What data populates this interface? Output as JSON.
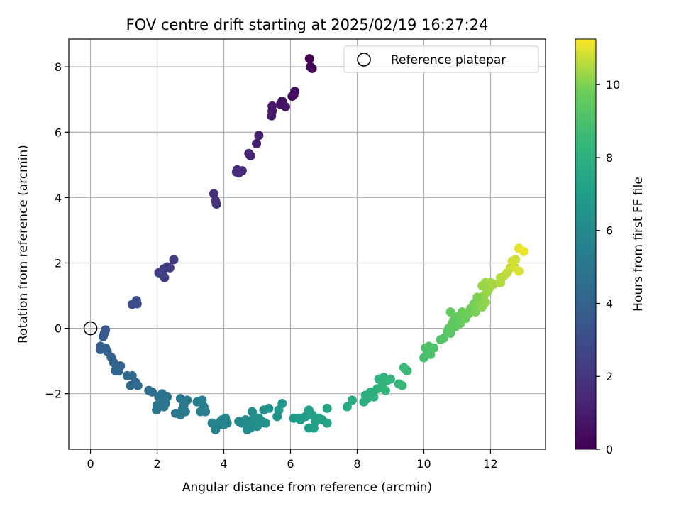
{
  "chart_data": {
    "type": "scatter",
    "title": "FOV centre drift starting at 2025/02/19 16:27:24",
    "xlabel": "Angular distance from reference (arcmin)",
    "ylabel": "Rotation from reference (arcmin)",
    "xlim": [
      -0.65,
      13.65
    ],
    "ylim": [
      -3.7,
      8.85
    ],
    "xticks": [
      0,
      2,
      4,
      6,
      8,
      10,
      12
    ],
    "yticks": [
      -2,
      0,
      2,
      4,
      6,
      8
    ],
    "xtick_labels": [
      "0",
      "2",
      "4",
      "6",
      "8",
      "10",
      "12"
    ],
    "ytick_labels": [
      "−2",
      "0",
      "2",
      "4",
      "6",
      "8"
    ],
    "grid": true,
    "colormap": "viridis",
    "colorbar": {
      "label": "Hours from first FF file",
      "range": [
        0,
        11.25
      ],
      "ticks": [
        0,
        2,
        4,
        6,
        8,
        10
      ],
      "tick_labels": [
        "0",
        "2",
        "4",
        "6",
        "8",
        "10"
      ]
    },
    "legend": {
      "position": "top-right",
      "entries": [
        {
          "label": "Reference platepar",
          "marker": "open-circle",
          "color": "#000000"
        }
      ]
    },
    "reference_point": {
      "x": 0,
      "y": 0
    },
    "points_xyc": [
      [
        6.57,
        8.25,
        0.0
      ],
      [
        6.6,
        8.0,
        0.1
      ],
      [
        6.65,
        7.95,
        0.2
      ],
      [
        6.13,
        7.25,
        0.4
      ],
      [
        6.1,
        7.15,
        0.45
      ],
      [
        6.05,
        7.1,
        0.5
      ],
      [
        5.75,
        6.95,
        0.6
      ],
      [
        5.7,
        6.85,
        0.65
      ],
      [
        5.85,
        6.78,
        0.7
      ],
      [
        5.45,
        6.8,
        0.8
      ],
      [
        5.45,
        6.65,
        0.85
      ],
      [
        5.43,
        6.5,
        0.9
      ],
      [
        5.05,
        5.9,
        1.1
      ],
      [
        4.98,
        5.65,
        1.15
      ],
      [
        4.75,
        5.35,
        1.25
      ],
      [
        4.8,
        5.28,
        1.3
      ],
      [
        4.4,
        4.85,
        1.45
      ],
      [
        4.45,
        4.75,
        1.5
      ],
      [
        4.55,
        4.82,
        1.55
      ],
      [
        4.38,
        4.78,
        1.6
      ],
      [
        3.7,
        4.12,
        1.75
      ],
      [
        3.75,
        3.9,
        1.8
      ],
      [
        3.78,
        3.8,
        1.85
      ],
      [
        2.5,
        2.1,
        2.2
      ],
      [
        2.38,
        1.85,
        2.25
      ],
      [
        2.2,
        1.82,
        2.3
      ],
      [
        2.05,
        1.7,
        2.35
      ],
      [
        2.15,
        1.65,
        2.4
      ],
      [
        2.22,
        1.55,
        2.45
      ],
      [
        2.3,
        1.88,
        2.3
      ],
      [
        1.38,
        0.85,
        2.9
      ],
      [
        1.4,
        0.75,
        2.95
      ],
      [
        1.25,
        0.73,
        3.0
      ],
      [
        0.45,
        -0.05,
        3.5
      ],
      [
        0.42,
        -0.15,
        3.55
      ],
      [
        0.38,
        -0.25,
        3.6
      ],
      [
        0.3,
        -0.55,
        3.7
      ],
      [
        0.3,
        -0.65,
        3.75
      ],
      [
        0.45,
        -0.6,
        3.8
      ],
      [
        0.5,
        -0.7,
        3.85
      ],
      [
        0.62,
        -0.88,
        3.95
      ],
      [
        0.7,
        -1.05,
        4.0
      ],
      [
        0.78,
        -1.2,
        4.05
      ],
      [
        0.85,
        -1.3,
        4.1
      ],
      [
        0.9,
        -1.15,
        4.05
      ],
      [
        0.75,
        -1.3,
        4.1
      ],
      [
        1.1,
        -1.45,
        4.25
      ],
      [
        1.25,
        -1.45,
        4.3
      ],
      [
        1.2,
        -1.75,
        4.35
      ],
      [
        1.35,
        -1.65,
        4.4
      ],
      [
        1.42,
        -1.75,
        4.45
      ],
      [
        1.75,
        -1.9,
        4.6
      ],
      [
        1.85,
        -1.95,
        4.65
      ],
      [
        2.05,
        -2.1,
        4.7
      ],
      [
        2.15,
        -2.0,
        4.75
      ],
      [
        2.22,
        -2.2,
        4.8
      ],
      [
        2.3,
        -2.1,
        4.85
      ],
      [
        2.0,
        -2.35,
        4.85
      ],
      [
        2.1,
        -2.3,
        4.9
      ],
      [
        1.98,
        -2.5,
        4.95
      ],
      [
        2.2,
        -2.4,
        4.9
      ],
      [
        2.25,
        -2.3,
        4.95
      ],
      [
        2.55,
        -2.6,
        5.0
      ],
      [
        2.7,
        -2.65,
        5.05
      ],
      [
        2.75,
        -2.5,
        5.1
      ],
      [
        2.85,
        -2.55,
        5.15
      ],
      [
        2.7,
        -2.15,
        5.1
      ],
      [
        2.9,
        -2.2,
        5.2
      ],
      [
        2.8,
        -2.35,
        5.15
      ],
      [
        3.2,
        -2.25,
        5.3
      ],
      [
        3.35,
        -2.2,
        5.35
      ],
      [
        3.3,
        -2.55,
        5.35
      ],
      [
        3.45,
        -2.55,
        5.4
      ],
      [
        3.4,
        -2.4,
        5.4
      ],
      [
        3.65,
        -2.9,
        5.55
      ],
      [
        3.75,
        -3.1,
        5.6
      ],
      [
        3.85,
        -2.95,
        5.65
      ],
      [
        3.95,
        -2.8,
        5.7
      ],
      [
        4.05,
        -2.75,
        5.75
      ],
      [
        4.1,
        -2.9,
        5.8
      ],
      [
        3.9,
        -2.85,
        5.75
      ],
      [
        4.0,
        -2.95,
        5.8
      ],
      [
        4.45,
        -2.85,
        5.95
      ],
      [
        4.55,
        -2.9,
        6.0
      ],
      [
        4.65,
        -2.8,
        6.05
      ],
      [
        4.7,
        -3.1,
        6.1
      ],
      [
        4.8,
        -3.05,
        6.15
      ],
      [
        4.85,
        -2.9,
        6.2
      ],
      [
        4.95,
        -2.95,
        6.25
      ],
      [
        5.0,
        -3.0,
        6.3
      ],
      [
        4.85,
        -2.55,
        6.2
      ],
      [
        4.9,
        -2.7,
        6.25
      ],
      [
        5.05,
        -2.75,
        6.35
      ],
      [
        5.15,
        -2.85,
        6.4
      ],
      [
        5.2,
        -2.5,
        6.4
      ],
      [
        5.35,
        -2.45,
        6.5
      ],
      [
        5.25,
        -2.9,
        6.45
      ],
      [
        4.75,
        -2.95,
        6.2
      ],
      [
        5.6,
        -2.7,
        6.6
      ],
      [
        5.65,
        -2.5,
        6.65
      ],
      [
        5.75,
        -2.3,
        6.7
      ],
      [
        6.1,
        -2.75,
        6.9
      ],
      [
        6.25,
        -2.75,
        6.95
      ],
      [
        6.3,
        -2.8,
        7.0
      ],
      [
        6.45,
        -2.7,
        7.05
      ],
      [
        6.55,
        -2.5,
        7.1
      ],
      [
        6.55,
        -3.05,
        7.1
      ],
      [
        6.7,
        -3.05,
        7.15
      ],
      [
        6.75,
        -2.85,
        7.2
      ],
      [
        6.85,
        -2.75,
        7.25
      ],
      [
        6.95,
        -2.8,
        7.3
      ],
      [
        7.1,
        -2.45,
        7.35
      ],
      [
        7.1,
        -2.9,
        7.35
      ],
      [
        6.65,
        -2.65,
        7.2
      ],
      [
        7.7,
        -2.4,
        7.65
      ],
      [
        7.85,
        -2.2,
        7.7
      ],
      [
        8.2,
        -2.25,
        7.85
      ],
      [
        8.25,
        -2.05,
        7.9
      ],
      [
        8.3,
        -2.15,
        7.9
      ],
      [
        8.4,
        -1.95,
        7.95
      ],
      [
        8.5,
        -2.1,
        8.0
      ],
      [
        8.6,
        -1.85,
        8.05
      ],
      [
        8.65,
        -1.55,
        8.1
      ],
      [
        8.75,
        -1.65,
        8.15
      ],
      [
        8.8,
        -1.5,
        8.2
      ],
      [
        8.9,
        -1.6,
        8.25
      ],
      [
        8.75,
        -1.8,
        8.2
      ],
      [
        8.85,
        -1.9,
        8.25
      ],
      [
        9.0,
        -1.55,
        8.3
      ],
      [
        9.25,
        -1.7,
        8.45
      ],
      [
        9.35,
        -1.75,
        8.5
      ],
      [
        9.4,
        -1.2,
        8.55
      ],
      [
        9.5,
        -1.3,
        8.6
      ],
      [
        9.45,
        -1.25,
        8.6
      ],
      [
        10.0,
        -0.9,
        8.9
      ],
      [
        10.1,
        -0.75,
        8.95
      ],
      [
        10.05,
        -0.6,
        9.0
      ],
      [
        10.2,
        -0.8,
        9.05
      ],
      [
        10.15,
        -0.55,
        9.05
      ],
      [
        10.3,
        -0.6,
        9.1
      ],
      [
        10.5,
        -0.35,
        9.2
      ],
      [
        10.6,
        -0.3,
        9.25
      ],
      [
        10.7,
        -0.1,
        9.3
      ],
      [
        10.75,
        0.0,
        9.35
      ],
      [
        10.8,
        -0.15,
        9.4
      ],
      [
        10.85,
        0.15,
        9.45
      ],
      [
        10.95,
        0.05,
        9.5
      ],
      [
        10.8,
        0.5,
        9.55
      ],
      [
        11.0,
        0.35,
        9.6
      ],
      [
        11.1,
        0.15,
        9.65
      ],
      [
        11.15,
        0.5,
        9.7
      ],
      [
        11.25,
        0.3,
        9.75
      ],
      [
        11.35,
        0.45,
        9.8
      ],
      [
        11.4,
        0.6,
        9.85
      ],
      [
        11.5,
        0.75,
        9.9
      ],
      [
        11.55,
        0.5,
        9.95
      ],
      [
        11.65,
        0.7,
        10.0
      ],
      [
        11.7,
        0.85,
        10.05
      ],
      [
        11.75,
        0.65,
        10.1
      ],
      [
        11.8,
        1.0,
        10.15
      ],
      [
        11.85,
        0.8,
        10.2
      ],
      [
        11.9,
        1.1,
        10.25
      ],
      [
        11.95,
        1.2,
        10.3
      ],
      [
        11.75,
        1.3,
        10.25
      ],
      [
        11.85,
        1.4,
        10.3
      ],
      [
        12.0,
        1.4,
        10.35
      ],
      [
        12.1,
        1.35,
        10.4
      ],
      [
        12.3,
        1.4,
        10.5
      ],
      [
        12.4,
        1.6,
        10.6
      ],
      [
        12.5,
        1.7,
        10.65
      ],
      [
        12.6,
        1.85,
        10.7
      ],
      [
        12.65,
        2.05,
        10.75
      ],
      [
        12.75,
        2.1,
        10.8
      ],
      [
        12.7,
        1.9,
        10.85
      ],
      [
        12.85,
        1.75,
        10.9
      ],
      [
        12.85,
        2.45,
        11.0
      ],
      [
        13.0,
        2.35,
        11.1
      ],
      [
        12.3,
        1.55,
        10.55
      ],
      [
        11.6,
        0.95,
        10.0
      ],
      [
        10.9,
        0.25,
        9.5
      ]
    ]
  }
}
